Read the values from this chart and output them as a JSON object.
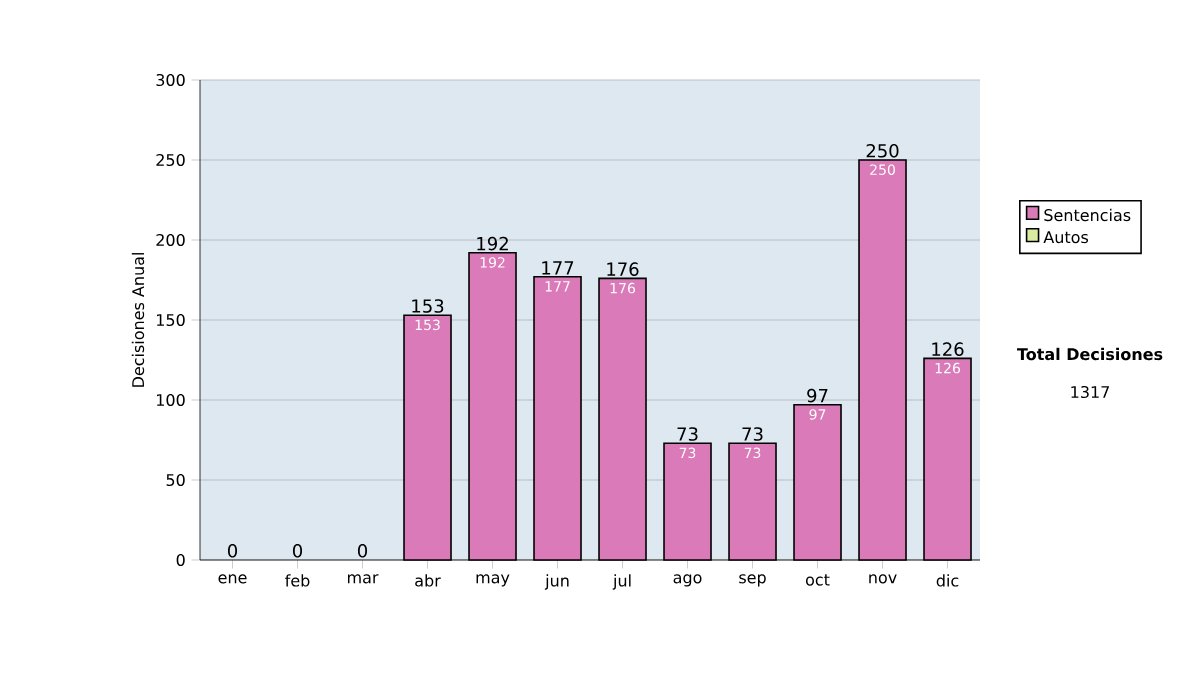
{
  "chart_data": {
    "type": "bar",
    "stacked": true,
    "ylabel": "Decisiones Anual",
    "categories": [
      "ene",
      "feb",
      "mar",
      "abr",
      "may",
      "jun",
      "jul",
      "ago",
      "sep",
      "oct",
      "nov",
      "dic"
    ],
    "series": [
      {
        "name": "Sentencias",
        "color": "#db7ab8",
        "values": [
          0,
          0,
          0,
          153,
          192,
          177,
          176,
          73,
          73,
          97,
          250,
          126
        ],
        "value_labels": [
          null,
          null,
          null,
          "153",
          "192",
          "177",
          "176",
          "73",
          "73",
          "97",
          "250",
          "126"
        ]
      },
      {
        "name": "Autos",
        "color": "#d9eca0",
        "values": [
          0,
          0,
          0,
          0,
          0,
          0,
          0,
          0,
          0,
          0,
          0,
          0
        ]
      }
    ],
    "totals": [
      "0",
      "0",
      "0",
      "153",
      "192",
      "177",
      "176",
      "73",
      "73",
      "97",
      "250",
      "126"
    ],
    "ylim": [
      0,
      300
    ],
    "yticks": [
      0,
      50,
      100,
      150,
      200,
      250,
      300
    ],
    "grid": "y",
    "legend": "right",
    "annotations": [
      "Total Decisiones",
      "1317"
    ]
  }
}
